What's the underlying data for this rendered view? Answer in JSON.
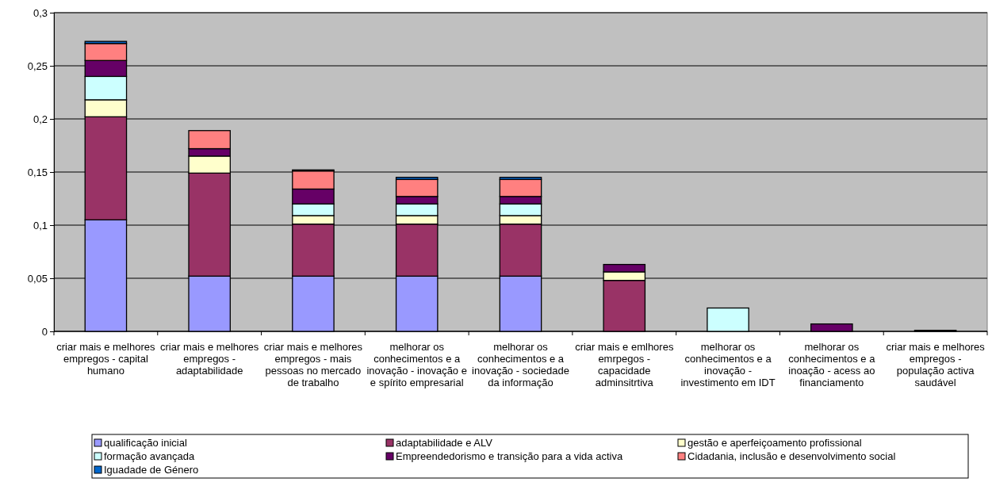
{
  "chart_data": {
    "type": "bar",
    "stacked": true,
    "categories": [
      "criar mais e melhores empregos - capital humano",
      "criar mais e melhores empregos - adaptabilidade",
      "criar mais e melhores empregos - mais pessoas no mercado de trabalho",
      "melhorar os conhecimentos e a inovação - inovação e e spírito empresarial",
      "melhorar os conhecimentos e a inovação - sociedade da informação",
      "criar mais e emlhores emrpegos - capacidade adminsitrtiva",
      "melhorar os conhecimentos e a inovação - investimento em IDT",
      "melhorar os conhecimentos e a inoação - acess ao financiamento",
      "criar mais e melhores empregos - população activa saudável"
    ],
    "series": [
      {
        "name": "qualificação inicial",
        "color": "#9999ff",
        "values": [
          0.105,
          0.052,
          0.052,
          0.052,
          0.052,
          null,
          null,
          null,
          null
        ]
      },
      {
        "name": "adaptabilidade e ALV",
        "color": "#993366",
        "values": [
          0.097,
          0.097,
          0.049,
          0.049,
          0.049,
          0.048,
          null,
          null,
          null
        ]
      },
      {
        "name": "gestão e aperfeiçoamento profissional",
        "color": "#ffffcc",
        "values": [
          0.016,
          0.016,
          0.008,
          0.008,
          0.008,
          0.008,
          null,
          null,
          null
        ]
      },
      {
        "name": "formação avançada",
        "color": "#ccffff",
        "values": [
          0.022,
          null,
          0.011,
          0.011,
          0.011,
          null,
          0.022,
          null,
          null
        ]
      },
      {
        "name": "Empreendedorismo e transição para a vida activa",
        "color": "#660066",
        "values": [
          0.015,
          0.007,
          0.014,
          0.007,
          0.007,
          0.007,
          null,
          0.007,
          null
        ]
      },
      {
        "name": "Cidadania, inclusão e desenvolvimento social",
        "color": "#ff8080",
        "values": [
          0.016,
          0.017,
          0.017,
          0.016,
          0.016,
          null,
          null,
          null,
          null
        ]
      },
      {
        "name": "Iguadade de Género",
        "color": "#0066cc",
        "values": [
          0.002,
          null,
          0.001,
          0.002,
          0.002,
          null,
          null,
          null,
          0.001
        ]
      }
    ],
    "ylim": [
      0,
      0.3
    ],
    "yticks": [
      {
        "value": 0,
        "label": "0"
      },
      {
        "value": 0.05,
        "label": "0,05"
      },
      {
        "value": 0.1,
        "label": "0,1"
      },
      {
        "value": 0.15,
        "label": "0,15"
      },
      {
        "value": 0.2,
        "label": "0,2"
      },
      {
        "value": 0.25,
        "label": "0,25"
      },
      {
        "value": 0.3,
        "label": "0,3"
      }
    ],
    "grid": "y",
    "legend": "bottom"
  }
}
